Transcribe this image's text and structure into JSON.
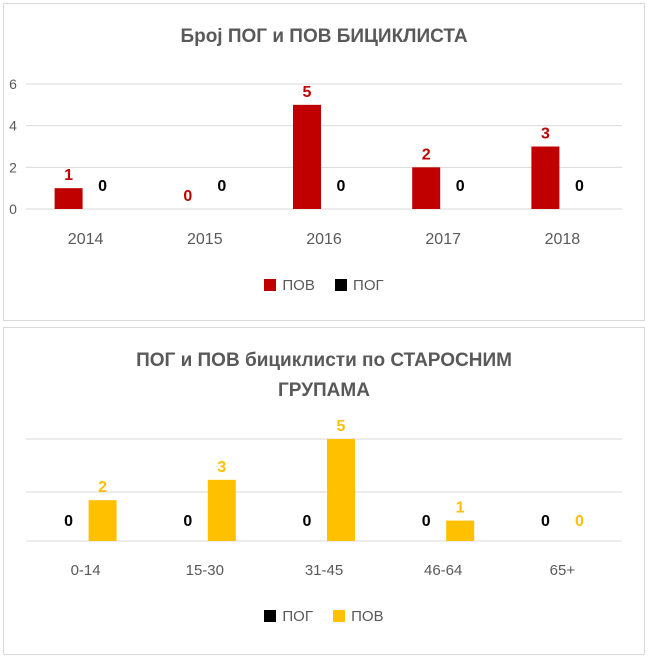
{
  "chart_data": [
    {
      "type": "bar",
      "title": "Број ПОГ и ПОВ БИЦИКЛИСТА",
      "categories": [
        "2014",
        "2015",
        "2016",
        "2017",
        "2018"
      ],
      "series": [
        {
          "name": "ПОВ",
          "values": [
            1,
            0,
            5,
            2,
            3
          ],
          "color": "#c00000"
        },
        {
          "name": "ПОГ",
          "values": [
            0,
            0,
            0,
            0,
            0
          ],
          "color": "#000000"
        }
      ],
      "ylim": [
        0,
        6
      ],
      "yticks": [
        "0",
        "2",
        "4",
        "6"
      ],
      "grid": true,
      "legend": "bottom"
    },
    {
      "type": "bar",
      "title": "ПОГ  и ПОВ бициклисти по СТАРОСНИМ ГРУПАМА",
      "title_lines": [
        "ПОГ  и ПОВ бициклисти по СТАРОСНИМ",
        "ГРУПАМА"
      ],
      "categories": [
        "0-14",
        "15-30",
        "31-45",
        "46-64",
        "65+"
      ],
      "series": [
        {
          "name": "ПОГ",
          "values": [
            0,
            0,
            0,
            0,
            0
          ],
          "color": "#000000"
        },
        {
          "name": "ПОВ",
          "values": [
            2,
            3,
            5,
            1,
            0
          ],
          "color": "#ffc000"
        }
      ],
      "ylim": [
        0,
        5
      ],
      "grid": true,
      "legend": "bottom"
    }
  ]
}
